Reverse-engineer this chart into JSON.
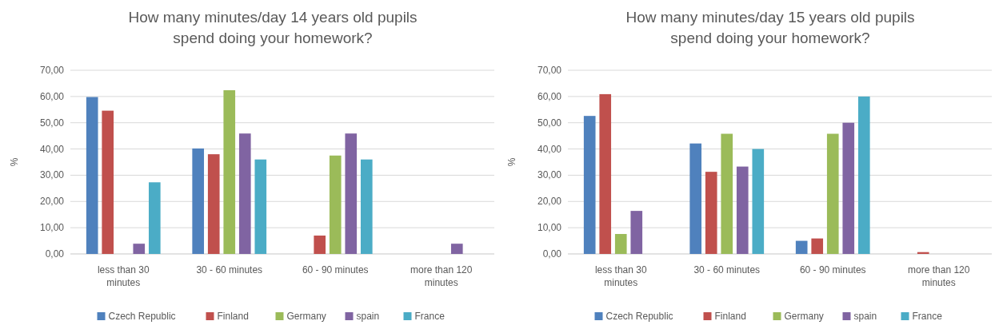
{
  "chart_data": [
    {
      "type": "bar",
      "title": "How many minutes/day 14 years old pupils spend doing your homework?",
      "ylabel": "%",
      "categories": [
        "less than 30 minutes",
        "30 - 60 minutes",
        "60 - 90 minutes",
        "more than 120 minutes"
      ],
      "series": [
        {
          "name": "Czech Republic",
          "color": "#4f81bd",
          "values": [
            59.8,
            40.2,
            0,
            0
          ]
        },
        {
          "name": "Finland",
          "color": "#c0504d",
          "values": [
            54.6,
            38,
            7,
            0
          ]
        },
        {
          "name": "Germany",
          "color": "#9bbb59",
          "values": [
            0,
            62.4,
            37.5,
            0
          ]
        },
        {
          "name": "spain",
          "color": "#8064a2",
          "values": [
            3.9,
            45.9,
            45.9,
            3.9
          ]
        },
        {
          "name": "France",
          "color": "#4bacc6",
          "values": [
            27.3,
            36,
            36,
            0
          ]
        }
      ],
      "ylim": [
        0,
        70
      ],
      "yticks": [
        {
          "value": 0,
          "label": "0,00"
        },
        {
          "value": 10,
          "label": "10,00"
        },
        {
          "value": 20,
          "label": "20,00"
        },
        {
          "value": 30,
          "label": "30,00"
        },
        {
          "value": 40,
          "label": "40,00"
        },
        {
          "value": 50,
          "label": "50,00"
        },
        {
          "value": 60,
          "label": "60,00"
        },
        {
          "value": 70,
          "label": "70,00"
        }
      ],
      "grid": "y",
      "legend": "bottom"
    },
    {
      "type": "bar",
      "title": "How many minutes/day 15 years old pupils spend doing your homework?",
      "ylabel": "%",
      "categories": [
        "less than 30 minutes",
        "30 - 60 minutes",
        "60 - 90 minutes",
        "more than 120 minutes"
      ],
      "series": [
        {
          "name": "Czech Republic",
          "color": "#4f81bd",
          "values": [
            52.6,
            42.1,
            5,
            0
          ]
        },
        {
          "name": "Finland",
          "color": "#c0504d",
          "values": [
            60.9,
            31.3,
            5.9,
            0.7
          ]
        },
        {
          "name": "Germany",
          "color": "#9bbb59",
          "values": [
            7.6,
            45.8,
            45.8,
            0
          ]
        },
        {
          "name": "spain",
          "color": "#8064a2",
          "values": [
            16.4,
            33.3,
            50,
            0
          ]
        },
        {
          "name": "France",
          "color": "#4bacc6",
          "values": [
            0,
            40,
            60,
            0
          ]
        }
      ],
      "ylim": [
        0,
        70
      ],
      "yticks": [
        {
          "value": 0,
          "label": "0,00"
        },
        {
          "value": 10,
          "label": "10,00"
        },
        {
          "value": 20,
          "label": "20,00"
        },
        {
          "value": 30,
          "label": "30,00"
        },
        {
          "value": 40,
          "label": "40,00"
        },
        {
          "value": 50,
          "label": "50,00"
        },
        {
          "value": 60,
          "label": "60,00"
        },
        {
          "value": 70,
          "label": "70,00"
        }
      ],
      "grid": "y",
      "legend": "bottom"
    }
  ]
}
